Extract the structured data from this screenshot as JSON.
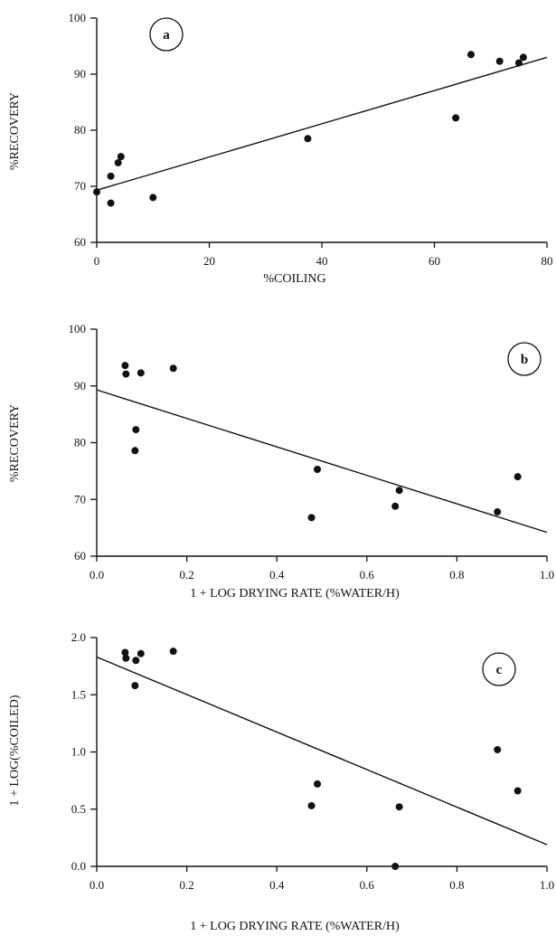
{
  "chart_data": [
    {
      "type": "scatter",
      "panel_label": "a",
      "xlabel": "%COILING",
      "ylabel": "%RECOVERY",
      "xlim": [
        0,
        80
      ],
      "ylim": [
        60,
        100
      ],
      "xticks": [
        "0",
        "20",
        "40",
        "60",
        "80"
      ],
      "yticks": [
        "60",
        "70",
        "80",
        "90",
        "100"
      ],
      "points": [
        {
          "x": 0,
          "y": 69
        },
        {
          "x": 2.5,
          "y": 71.8
        },
        {
          "x": 2.5,
          "y": 67
        },
        {
          "x": 3.8,
          "y": 74.2
        },
        {
          "x": 4.3,
          "y": 75.3
        },
        {
          "x": 10,
          "y": 68
        },
        {
          "x": 37.5,
          "y": 78.5
        },
        {
          "x": 63.8,
          "y": 82.2
        },
        {
          "x": 66.5,
          "y": 93.5
        },
        {
          "x": 71.6,
          "y": 92.3
        },
        {
          "x": 75,
          "y": 92
        },
        {
          "x": 75.8,
          "y": 93
        }
      ],
      "fit_line": {
        "x": [
          0,
          80
        ],
        "y": [
          69.3,
          93.0
        ]
      },
      "grid": false
    },
    {
      "type": "scatter",
      "panel_label": "b",
      "xlabel": "1 + LOG DRYING RATE (%WATER/H)",
      "ylabel": "%RECOVERY",
      "xlim": [
        0,
        1
      ],
      "ylim": [
        60,
        100
      ],
      "xticks": [
        "0.0",
        "0.2",
        "0.4",
        "0.6",
        "0.8",
        "1.0"
      ],
      "yticks": [
        "60",
        "70",
        "80",
        "90",
        "100"
      ],
      "points": [
        {
          "x": 0.063,
          "y": 93.6
        },
        {
          "x": 0.065,
          "y": 92.1
        },
        {
          "x": 0.098,
          "y": 92.3
        },
        {
          "x": 0.17,
          "y": 93.1
        },
        {
          "x": 0.087,
          "y": 82.3
        },
        {
          "x": 0.085,
          "y": 78.6
        },
        {
          "x": 0.49,
          "y": 75.3
        },
        {
          "x": 0.477,
          "y": 66.8
        },
        {
          "x": 0.672,
          "y": 71.6
        },
        {
          "x": 0.663,
          "y": 68.8
        },
        {
          "x": 0.89,
          "y": 67.8
        },
        {
          "x": 0.935,
          "y": 74.0
        }
      ],
      "fit_line": {
        "x": [
          0,
          1
        ],
        "y": [
          89.3,
          64.2
        ]
      },
      "grid": false
    },
    {
      "type": "scatter",
      "panel_label": "c",
      "xlabel": "1 + LOG DRYING RATE (%WATER/H)",
      "ylabel": "1 + LOG(%COILED)",
      "xlim": [
        0,
        1
      ],
      "ylim": [
        0,
        2
      ],
      "xticks": [
        "0.0",
        "0.2",
        "0.4",
        "0.6",
        "0.8",
        "1.0"
      ],
      "yticks": [
        "0.0",
        "0.5",
        "1.0",
        "1.5",
        "2.0"
      ],
      "points": [
        {
          "x": 0.063,
          "y": 1.87
        },
        {
          "x": 0.065,
          "y": 1.82
        },
        {
          "x": 0.098,
          "y": 1.86
        },
        {
          "x": 0.17,
          "y": 1.88
        },
        {
          "x": 0.087,
          "y": 1.8
        },
        {
          "x": 0.085,
          "y": 1.58
        },
        {
          "x": 0.49,
          "y": 0.72
        },
        {
          "x": 0.477,
          "y": 0.53
        },
        {
          "x": 0.672,
          "y": 0.52
        },
        {
          "x": 0.663,
          "y": 0.0
        },
        {
          "x": 0.89,
          "y": 1.02
        },
        {
          "x": 0.935,
          "y": 0.66
        }
      ],
      "fit_line": {
        "x": [
          0,
          1
        ],
        "y": [
          1.83,
          0.19
        ]
      },
      "grid": false
    }
  ]
}
